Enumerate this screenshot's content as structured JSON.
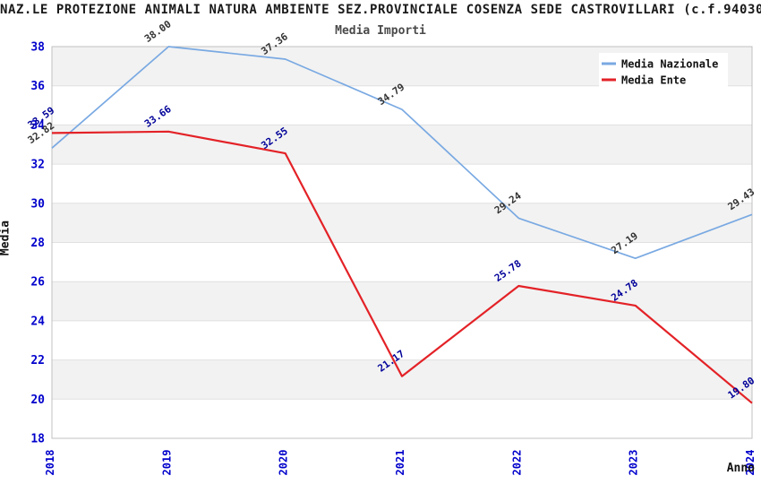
{
  "title": "NAZ.LE PROTEZIONE ANIMALI NATURA AMBIENTE SEZ.PROVINCIALE COSENZA SEDE CASTROVILLARI (c.f.94030",
  "subtitle": "Media Importi",
  "axis": {
    "ylabel": "Media",
    "xlabel": "Anno"
  },
  "colors": {
    "nazionale_line": "#79a9e2",
    "ente_line": "#e32227",
    "tick_label": "#0000cc",
    "nazionale_value_label": "#333333",
    "ente_value_label": "#000099",
    "band_fill": "#f2f2f2",
    "gridline": "#e0e0e0",
    "frame": "#c0c0c0",
    "legend_bg": "#ffffff"
  },
  "chart_data": {
    "type": "line",
    "title": "Media Importi",
    "xlabel": "Anno",
    "ylabel": "Media",
    "categories": [
      "2018",
      "2019",
      "2020",
      "2021",
      "2022",
      "2023",
      "2024"
    ],
    "yticks": [
      38,
      36,
      34,
      32,
      30,
      28,
      26,
      24,
      22,
      20,
      18
    ],
    "ylim": [
      18,
      38
    ],
    "grid": "alternating-horizontal-bands",
    "legend_position": "top-right-inside",
    "value_labels": "two-decimals-rotated",
    "series": [
      {
        "name": "Media Nazionale",
        "color": "#79a9e2",
        "label_color": "#333333",
        "values": [
          32.82,
          38.0,
          37.36,
          34.79,
          29.24,
          27.19,
          29.43
        ]
      },
      {
        "name": "Media Ente",
        "color": "#e32227",
        "label_color": "#000099",
        "values": [
          33.59,
          33.66,
          32.55,
          21.17,
          25.78,
          24.78,
          19.8
        ]
      }
    ]
  }
}
